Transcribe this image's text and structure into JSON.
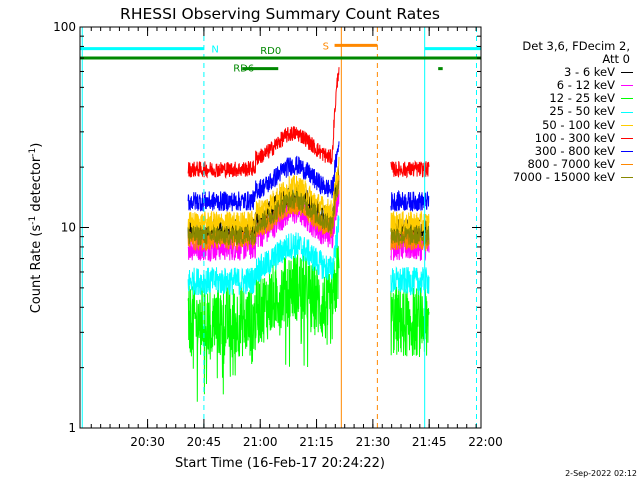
{
  "chart_data": {
    "type": "line",
    "title": "RHESSI Observing Summary Count Rates",
    "xlabel": "Start Time (16-Feb-17 20:24:22)",
    "ylabel_main": "Count Rate (s",
    "ylabel_sup1": "-1",
    "ylabel_mid": " detector",
    "ylabel_sup2": "-1",
    "ylabel_end": ")",
    "yscale": "log",
    "ylim": [
      1,
      100
    ],
    "yticks": [
      {
        "v": 1,
        "label": "1"
      },
      {
        "v": 10,
        "label": "10"
      },
      {
        "v": 100,
        "label": "100"
      }
    ],
    "xlim_minutes": [
      20.2,
      21.98
    ],
    "xticks": [
      {
        "t": 20.5,
        "label": "20:30"
      },
      {
        "t": 20.75,
        "label": "20:45"
      },
      {
        "t": 21.0,
        "label": "21:00"
      },
      {
        "t": 21.25,
        "label": "21:15"
      },
      {
        "t": 21.5,
        "label": "21:30"
      },
      {
        "t": 21.75,
        "label": "21:45"
      },
      {
        "t": 22.0,
        "label": "22:00"
      }
    ],
    "legend_header": [
      "Det 3,6, FDecim 2,",
      "Att 0"
    ],
    "series": [
      {
        "name": "3 - 6 keV",
        "color": "#000000",
        "base": 9.6,
        "noise": 0.06
      },
      {
        "name": "6 - 12 keV",
        "color": "#ff00ff",
        "base": 8.0,
        "noise": 0.07
      },
      {
        "name": "12 - 25 keV",
        "color": "#00ff00",
        "base": 3.4,
        "noise": 0.18
      },
      {
        "name": "25 - 50 keV",
        "color": "#00ffff",
        "base": 5.4,
        "noise": 0.07
      },
      {
        "name": "50 - 100 keV",
        "color": "#ffcc00",
        "base": 10.5,
        "noise": 0.06
      },
      {
        "name": "100 - 300 keV",
        "color": "#ff0000",
        "base": 19.5,
        "noise": 0.04
      },
      {
        "name": "300 - 800 keV",
        "color": "#0000ff",
        "base": 13.5,
        "noise": 0.05
      },
      {
        "name": "800 - 7000 keV",
        "color": "#ff8800",
        "base": 8.6,
        "noise": 0.05
      },
      {
        "name": "7000 - 15000 keV",
        "color": "#888800",
        "base": 9.1,
        "noise": 0.05
      }
    ],
    "data_segments": [
      [
        20.68,
        21.35
      ],
      [
        21.58,
        21.75
      ]
    ],
    "flags": [
      {
        "label": "N",
        "color": "#00ffff",
        "level": 78,
        "spans": [
          [
            20.2,
            20.75
          ],
          [
            21.73,
            21.98
          ]
        ]
      },
      {
        "label": "S",
        "color": "#ff8800",
        "level": 81,
        "spans": [
          [
            21.33,
            21.52
          ]
        ]
      },
      {
        "label": "RD0",
        "color": "#008800",
        "level": 70,
        "spans": [
          [
            20.2,
            21.98
          ]
        ]
      },
      {
        "label": "RD6",
        "color": "#008800",
        "level": 62,
        "spans": [
          [
            20.92,
            21.08
          ],
          [
            21.79,
            21.81
          ]
        ]
      }
    ],
    "vlines": [
      {
        "t": 20.21,
        "color": "#00ffff",
        "style": "solid"
      },
      {
        "t": 20.75,
        "color": "#00ffff",
        "style": "dashed"
      },
      {
        "t": 21.36,
        "color": "#ff8800",
        "style": "solid"
      },
      {
        "t": 21.52,
        "color": "#ff8800",
        "style": "dashed"
      },
      {
        "t": 21.73,
        "color": "#00ffff",
        "style": "solid"
      },
      {
        "t": 21.96,
        "color": "#00ffff",
        "style": "dashed"
      }
    ]
  },
  "timestamp": "2-Sep-2022 02:12"
}
